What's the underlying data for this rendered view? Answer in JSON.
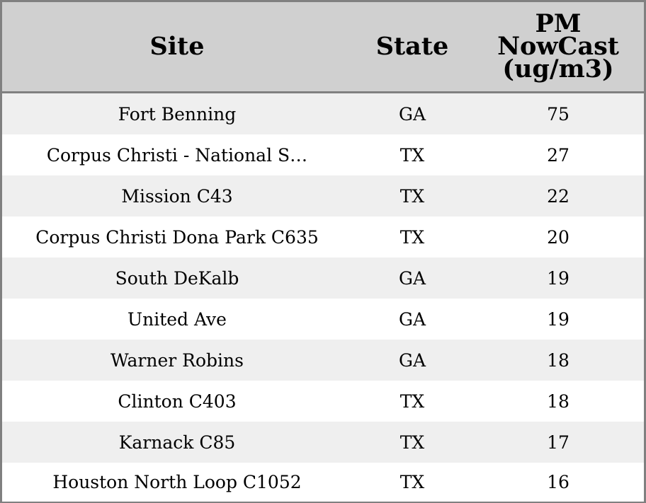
{
  "chart_data": {
    "type": "table",
    "columns": [
      "Site",
      "State",
      "PM\nNowCast\n(ug/m3)"
    ],
    "rows": [
      {
        "site": "Fort Benning",
        "state": "GA",
        "pm": "75"
      },
      {
        "site": "Corpus Christi - National S…",
        "state": "TX",
        "pm": "27"
      },
      {
        "site": "Mission C43",
        "state": "TX",
        "pm": "22"
      },
      {
        "site": "Corpus Christi Dona Park C635",
        "state": "TX",
        "pm": "20"
      },
      {
        "site": "South DeKalb",
        "state": "GA",
        "pm": "19"
      },
      {
        "site": "United Ave",
        "state": "GA",
        "pm": "19"
      },
      {
        "site": "Warner Robins",
        "state": "GA",
        "pm": "18"
      },
      {
        "site": "Clinton C403",
        "state": "TX",
        "pm": "18"
      },
      {
        "site": "Karnack C85",
        "state": "TX",
        "pm": "17"
      },
      {
        "site": "Houston North Loop C1052",
        "state": "TX",
        "pm": "16"
      }
    ]
  },
  "colors": {
    "header_bg": "#d0d0d0",
    "odd_row_bg": "#efefef",
    "even_row_bg": "#ffffff",
    "border": "#808080"
  }
}
